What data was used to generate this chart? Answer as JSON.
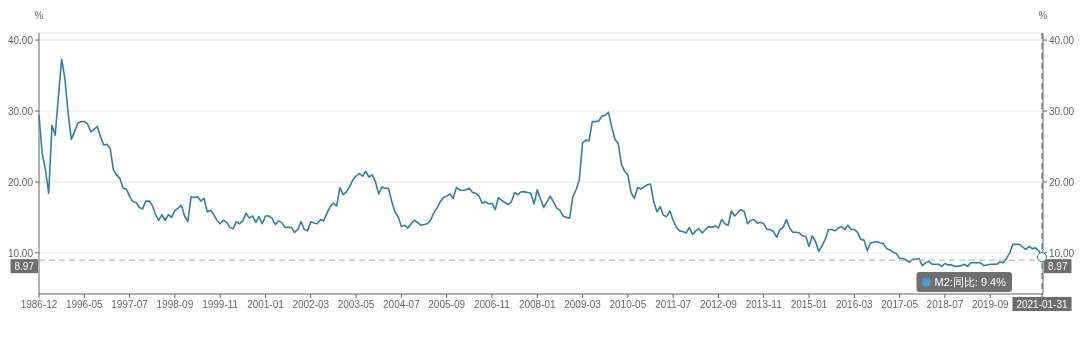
{
  "chart_data": {
    "type": "line",
    "ylabel": "%",
    "y2label": "%",
    "categories": [
      "1986-12",
      null,
      null,
      null,
      null,
      null,
      null,
      null,
      null,
      null,
      null,
      null,
      null,
      null,
      "1996-05",
      null,
      null,
      null,
      null,
      null,
      null,
      null,
      null,
      null,
      null,
      null,
      null,
      null,
      "1997-07",
      null,
      null,
      null,
      null,
      null,
      null,
      null,
      null,
      null,
      null,
      null,
      null,
      null,
      "1998-09",
      null,
      null,
      null,
      null,
      null,
      null,
      null,
      null,
      null,
      null,
      null,
      null,
      null,
      "1999-11",
      null,
      null,
      null,
      null,
      null,
      null,
      null,
      null,
      null,
      null,
      null,
      null,
      null,
      "2001-01",
      null,
      null,
      null,
      null,
      null,
      null,
      null,
      null,
      null,
      null,
      null,
      null,
      null,
      "2002-03",
      null,
      null,
      null,
      null,
      null,
      null,
      null,
      null,
      null,
      null,
      null,
      null,
      null,
      "2003-05",
      null,
      null,
      null,
      null,
      null,
      null,
      null,
      null,
      null,
      null,
      null,
      null,
      null,
      "2004-07",
      null,
      null,
      null,
      null,
      null,
      null,
      null,
      null,
      null,
      null,
      null,
      null,
      null,
      "2005-09",
      null,
      null,
      null,
      null,
      null,
      null,
      null,
      null,
      null,
      null,
      null,
      null,
      null,
      "2006-11",
      null,
      null,
      null,
      null,
      null,
      null,
      null,
      null,
      null,
      null,
      null,
      null,
      null,
      "2008-01",
      null,
      null,
      null,
      null,
      null,
      null,
      null,
      null,
      null,
      null,
      null,
      null,
      null,
      "2009-03",
      null,
      null,
      null,
      null,
      null,
      null,
      null,
      null,
      null,
      null,
      null,
      null,
      null,
      "2010-05",
      null,
      null,
      null,
      null,
      null,
      null,
      null,
      null,
      null,
      null,
      null,
      null,
      null,
      "2011-07",
      null,
      null,
      null,
      null,
      null,
      null,
      null,
      null,
      null,
      null,
      null,
      null,
      null,
      "2012-09",
      null,
      null,
      null,
      null,
      null,
      null,
      null,
      null,
      null,
      null,
      null,
      null,
      null,
      "2013-11",
      null,
      null,
      null,
      null,
      null,
      null,
      null,
      null,
      null,
      null,
      null,
      null,
      null,
      "2015-01",
      null,
      null,
      null,
      null,
      null,
      null,
      null,
      null,
      null,
      null,
      null,
      null,
      null,
      "2016-03",
      null,
      null,
      null,
      null,
      null,
      null,
      null,
      null,
      null,
      null,
      null,
      null,
      null,
      "2017-05",
      null,
      null,
      null,
      null,
      null,
      null,
      null,
      null,
      null,
      null,
      null,
      null,
      null,
      "2018-07",
      null,
      null,
      null,
      null,
      null,
      null,
      null,
      null,
      null,
      null,
      null,
      null,
      null,
      "2019-09",
      null,
      null,
      null,
      null,
      null,
      null,
      null,
      null,
      null,
      null,
      null,
      null,
      null,
      null,
      null,
      "2021-01-31"
    ],
    "series": [
      {
        "color": "#2f7fae",
        "values": [
          29.4,
          24.0,
          21.7,
          18.4,
          28.0,
          26.6,
          32.0,
          37.3,
          34.6,
          29.7,
          26.0,
          27.1,
          28.3,
          28.5,
          28.5,
          28.2,
          27.1,
          27.4,
          27.8,
          26.4,
          25.2,
          25.3,
          24.7,
          21.7,
          21.0,
          20.5,
          19.1,
          19.0,
          18.0,
          17.2,
          17.1,
          16.4,
          16.2,
          17.3,
          17.3,
          16.7,
          15.4,
          14.6,
          15.4,
          14.6,
          15.4,
          15.0,
          16.0,
          16.3,
          16.7,
          15.2,
          14.4,
          17.9,
          17.8,
          17.9,
          17.3,
          17.7,
          15.8,
          16.0,
          15.4,
          14.6,
          14.1,
          14.6,
          14.3,
          13.6,
          13.4,
          14.4,
          14.1,
          14.5,
          15.6,
          14.9,
          15.2,
          14.3,
          15.1,
          14.1,
          15.2,
          15.2,
          14.9,
          14.0,
          14.5,
          14.3,
          13.6,
          13.6,
          13.6,
          12.9,
          13.3,
          14.4,
          13.3,
          13.1,
          14.4,
          14.2,
          14.1,
          14.7,
          14.5,
          15.6,
          16.5,
          17.0,
          16.6,
          19.2,
          18.2,
          18.6,
          19.3,
          20.3,
          20.8,
          21.2,
          20.8,
          21.5,
          20.7,
          21.0,
          20.0,
          18.3,
          19.3,
          19.1,
          19.1,
          17.3,
          15.8,
          15.1,
          13.7,
          13.9,
          13.5,
          14.1,
          14.6,
          14.3,
          13.9,
          14.0,
          14.1,
          14.6,
          15.6,
          16.3,
          17.2,
          17.8,
          18.0,
          18.3,
          17.7,
          19.2,
          18.9,
          18.8,
          18.9,
          19.1,
          18.5,
          18.4,
          18.0,
          17.0,
          17.2,
          16.9,
          17.0,
          16.1,
          17.8,
          17.4,
          17.1,
          16.8,
          17.2,
          18.5,
          18.2,
          18.6,
          18.6,
          18.5,
          18.4,
          16.9,
          18.9,
          17.6,
          16.4,
          17.2,
          18.0,
          17.2,
          16.3,
          16.0,
          15.2,
          15.0,
          14.9,
          17.9,
          18.9,
          20.3,
          25.5,
          25.9,
          25.8,
          28.5,
          28.5,
          28.6,
          29.3,
          29.4,
          29.8,
          27.8,
          26.0,
          25.5,
          22.5,
          21.5,
          21.0,
          18.5,
          17.7,
          19.2,
          19.0,
          19.3,
          19.6,
          19.7,
          17.2,
          15.8,
          16.5,
          15.3,
          15.1,
          15.9,
          14.6,
          13.6,
          13.1,
          13.0,
          12.8,
          13.6,
          12.6,
          13.1,
          13.4,
          12.8,
          13.3,
          13.7,
          13.6,
          13.8,
          13.5,
          14.7,
          14.1,
          13.9,
          15.9,
          15.2,
          15.7,
          16.1,
          15.8,
          14.1,
          14.6,
          14.7,
          14.2,
          14.3,
          14.1,
          13.3,
          13.3,
          13.0,
          12.2,
          13.3,
          13.6,
          14.7,
          13.5,
          12.9,
          12.9,
          12.8,
          12.4,
          12.3,
          10.9,
          12.4,
          11.6,
          10.2,
          11.0,
          11.9,
          13.3,
          13.3,
          13.1,
          13.5,
          13.7,
          13.3,
          13.9,
          13.3,
          13.3,
          12.9,
          11.9,
          11.8,
          10.3,
          11.4,
          11.5,
          11.6,
          11.4,
          11.3,
          10.6,
          10.4,
          10.1,
          9.9,
          9.2,
          9.2,
          9.0,
          8.7,
          9.1,
          9.1,
          9.2,
          8.2,
          8.6,
          8.8,
          8.4,
          8.4,
          8.4,
          8.1,
          8.5,
          8.3,
          8.3,
          8.1,
          8.1,
          8.2,
          8.4,
          8.1,
          8.6,
          8.6,
          8.6,
          8.6,
          8.2,
          8.3,
          8.4,
          8.4,
          8.4,
          8.7,
          8.6,
          9.2,
          10.0,
          11.2,
          11.2,
          11.2,
          10.8,
          10.5,
          10.9,
          10.6,
          10.7,
          10.3,
          9.4
        ]
      }
    ],
    "ylim": [
      4.2,
      41
    ],
    "yticks": [
      {
        "value": 10,
        "label": "10.00"
      },
      {
        "value": 20,
        "label": "20.00"
      },
      {
        "value": 30,
        "label": "30.00"
      },
      {
        "value": 40,
        "label": "40.00"
      }
    ],
    "y2lim": [
      4.2,
      41
    ],
    "y2ticks": [
      {
        "value": 10,
        "label": "10.00"
      },
      {
        "value": 20,
        "label": "20.00"
      },
      {
        "value": 30,
        "label": "30.00"
      },
      {
        "value": 40,
        "label": "40.00"
      }
    ],
    "grid": "y",
    "marker": "none",
    "line_style": "solid",
    "ref_lines": [
      {
        "axis": "y",
        "value": 8.97,
        "label": "8.97"
      },
      {
        "axis": "x",
        "value": "2021-01-31",
        "label": "2021-01-31"
      }
    ],
    "annotations": [
      "M2:同比: 9.4%"
    ]
  }
}
